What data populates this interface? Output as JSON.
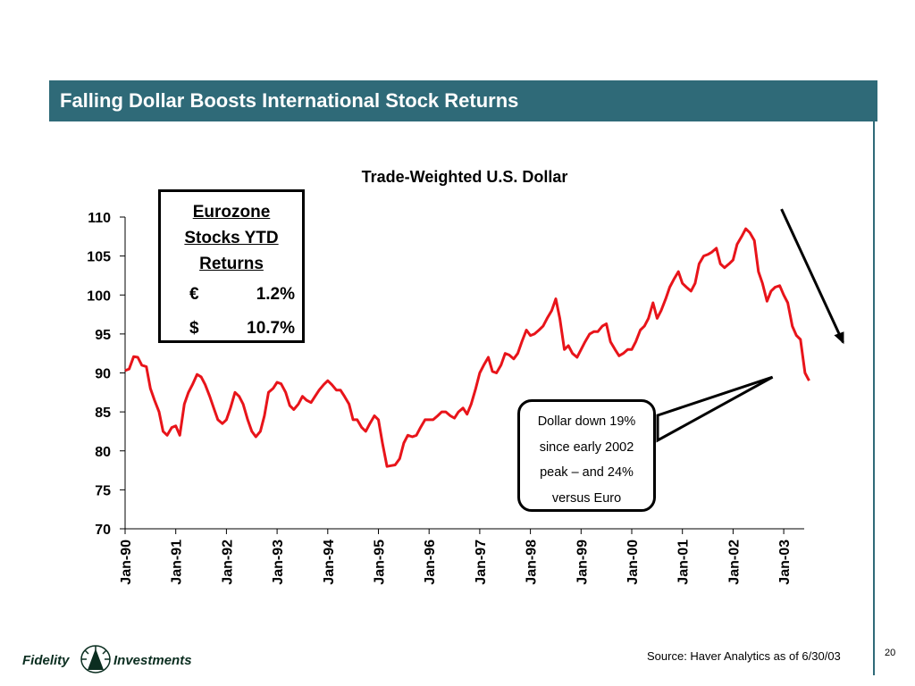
{
  "header": {
    "title": "Falling Dollar Boosts International Stock Returns"
  },
  "colors": {
    "header_bg": "#2f6a78",
    "series_line": "#e8141a",
    "logo_green": "#0b2e20"
  },
  "euro_box": {
    "heading": "Eurozone\nStocks YTD\nReturns",
    "rows": [
      {
        "symbol": "€",
        "value": "1.2%"
      },
      {
        "symbol": "$",
        "value": "10.7%"
      }
    ]
  },
  "callout": {
    "text": "Dollar down 19%\nsince early 2002\npeak – and 24%\nversus Euro"
  },
  "footer": {
    "source": "Source:  Haver Analytics as of 6/30/03",
    "page_number": "20",
    "logo_left": "Fidelity",
    "logo_right": "Investments",
    "logo_icon": "fidelity-pyramid-icon"
  },
  "chart_data": {
    "type": "line",
    "title": "Trade-Weighted U.S. Dollar",
    "xlabel": "",
    "ylabel": "",
    "ylim": [
      70,
      110
    ],
    "yticks": [
      70,
      75,
      80,
      85,
      90,
      95,
      100,
      105,
      110
    ],
    "categories": [
      "Jan-90",
      "Jan-91",
      "Jan-92",
      "Jan-93",
      "Jan-94",
      "Jan-95",
      "Jan-96",
      "Jan-97",
      "Jan-98",
      "Jan-99",
      "Jan-00",
      "Jan-01",
      "Jan-02",
      "Jan-03"
    ],
    "grid": false,
    "legend": "none",
    "series": [
      {
        "x": [
          1990.0,
          1990.08,
          1990.17,
          1990.25,
          1990.33,
          1990.42,
          1990.5,
          1990.58,
          1990.67,
          1990.75,
          1990.83,
          1990.92,
          1991.0,
          1991.08,
          1991.17,
          1991.25,
          1991.33,
          1991.42,
          1991.5,
          1991.58,
          1991.67,
          1991.75,
          1991.83,
          1991.92,
          1992.0,
          1992.08,
          1992.17,
          1992.25,
          1992.33,
          1992.42,
          1992.5,
          1992.58,
          1992.67,
          1992.75,
          1992.83,
          1992.92,
          1993.0,
          1993.08,
          1993.17,
          1993.25,
          1993.33,
          1993.42,
          1993.5,
          1993.58,
          1993.67,
          1993.75,
          1993.83,
          1993.92,
          1994.0,
          1994.08,
          1994.17,
          1994.25,
          1994.33,
          1994.42,
          1994.5,
          1994.58,
          1994.67,
          1994.75,
          1994.83,
          1994.92,
          1995.0,
          1995.08,
          1995.17,
          1995.25,
          1995.33,
          1995.42,
          1995.5,
          1995.58,
          1995.67,
          1995.75,
          1995.83,
          1995.92,
          1996.0,
          1996.08,
          1996.17,
          1996.25,
          1996.33,
          1996.42,
          1996.5,
          1996.58,
          1996.67,
          1996.75,
          1996.83,
          1996.92,
          1997.0,
          1997.08,
          1997.17,
          1997.25,
          1997.33,
          1997.42,
          1997.5,
          1997.58,
          1997.67,
          1997.75,
          1997.83,
          1997.92,
          1998.0,
          1998.08,
          1998.17,
          1998.25,
          1998.33,
          1998.42,
          1998.5,
          1998.58,
          1998.67,
          1998.75,
          1998.83,
          1998.92,
          1999.0,
          1999.08,
          1999.17,
          1999.25,
          1999.33,
          1999.42,
          1999.5,
          1999.58,
          1999.67,
          1999.75,
          1999.83,
          1999.92,
          2000.0,
          2000.08,
          2000.17,
          2000.25,
          2000.33,
          2000.42,
          2000.5,
          2000.58,
          2000.67,
          2000.75,
          2000.83,
          2000.92,
          2001.0,
          2001.08,
          2001.17,
          2001.25,
          2001.33,
          2001.42,
          2001.5,
          2001.58,
          2001.67,
          2001.75,
          2001.83,
          2001.92,
          2002.0,
          2002.08,
          2002.17,
          2002.25,
          2002.33,
          2002.42,
          2002.5,
          2002.58,
          2002.67,
          2002.75,
          2002.83,
          2002.92,
          2003.0,
          2003.08,
          2003.17,
          2003.25,
          2003.33,
          2003.42,
          2003.5
        ],
        "y": [
          90.3,
          90.5,
          92.1,
          92.0,
          91.0,
          90.8,
          88.0,
          86.5,
          85.0,
          82.5,
          82.0,
          83.0,
          83.2,
          82.0,
          86.0,
          87.5,
          88.5,
          89.8,
          89.5,
          88.5,
          87.0,
          85.5,
          84.0,
          83.5,
          84.0,
          85.5,
          87.5,
          87.0,
          86.0,
          84.0,
          82.5,
          81.8,
          82.5,
          84.5,
          87.5,
          88.0,
          88.8,
          88.6,
          87.5,
          85.8,
          85.3,
          86.0,
          87.0,
          86.5,
          86.2,
          87.0,
          87.8,
          88.5,
          89.0,
          88.5,
          87.8,
          87.8,
          87.0,
          86.0,
          84.0,
          84.0,
          83.0,
          82.5,
          83.5,
          84.5,
          84.0,
          81.0,
          78.0,
          78.1,
          78.2,
          79.0,
          81.0,
          82.0,
          81.8,
          82.0,
          83.0,
          84.0,
          84.0,
          84.0,
          84.5,
          85.0,
          85.0,
          84.5,
          84.2,
          85.0,
          85.5,
          84.7,
          86.0,
          88.0,
          90.0,
          91.0,
          92.0,
          90.2,
          90.0,
          91.0,
          92.5,
          92.3,
          91.8,
          92.5,
          94.0,
          95.5,
          94.8,
          95.0,
          95.5,
          96.0,
          97.0,
          98.0,
          99.5,
          97.0,
          93.0,
          93.5,
          92.5,
          92.0,
          93.0,
          94.0,
          95.0,
          95.3,
          95.3,
          96.0,
          96.3,
          94.0,
          93.0,
          92.2,
          92.5,
          93.0,
          93.0,
          94.0,
          95.5,
          96.0,
          97.0,
          99.0,
          97.0,
          98.0,
          99.5,
          101.0,
          102.0,
          103.0,
          101.5,
          101.0,
          100.5,
          101.5,
          104.0,
          105.0,
          105.2,
          105.5,
          106.0,
          104.0,
          103.5,
          104.0,
          104.5,
          106.5,
          107.5,
          108.5,
          108.0,
          107.0,
          103.0,
          101.5,
          99.2,
          100.5,
          101.0,
          101.2,
          100.0,
          99.0,
          96.0,
          94.8,
          94.3,
          90.0,
          89.0
        ]
      }
    ]
  }
}
